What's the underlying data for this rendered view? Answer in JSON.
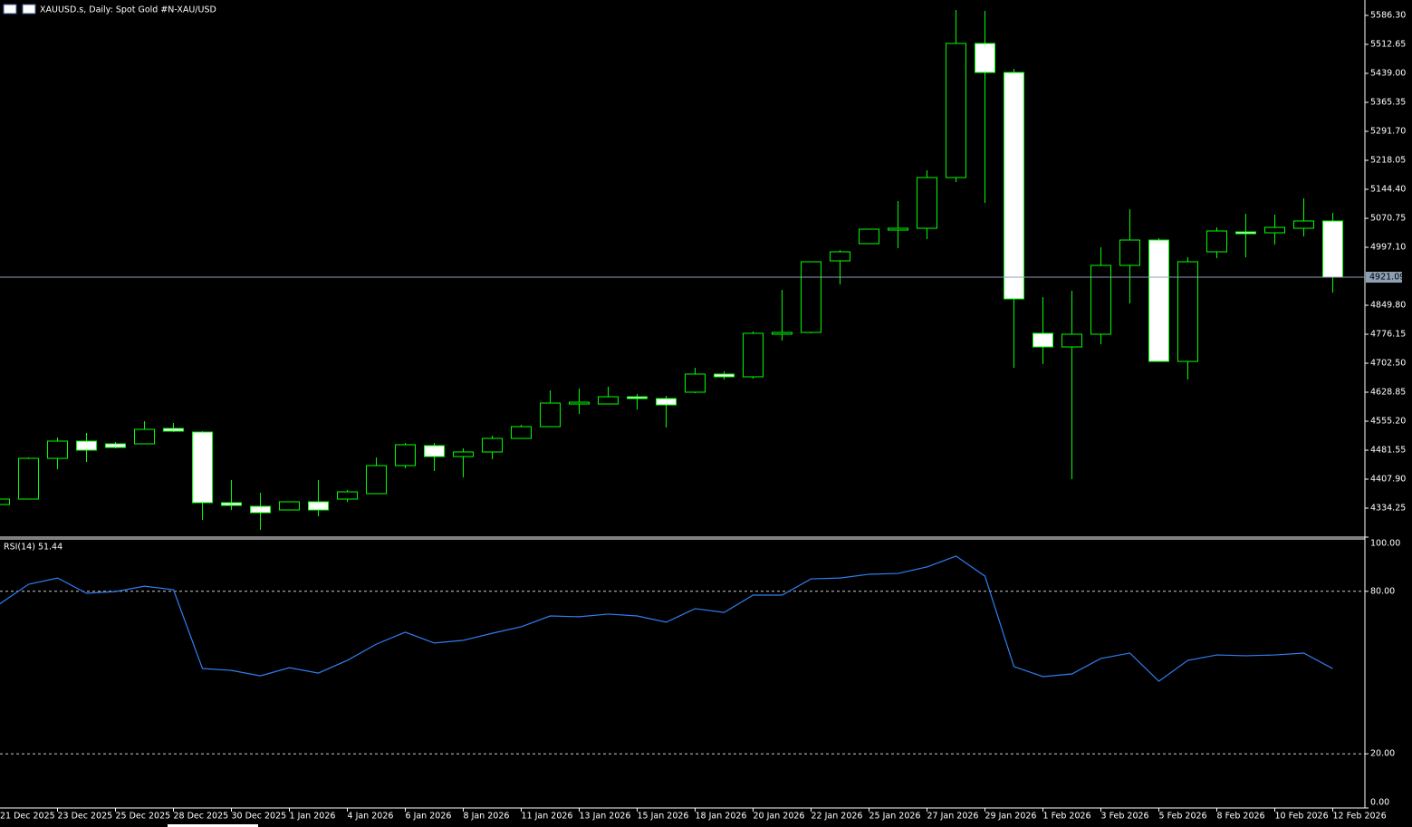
{
  "chart_data": [
    {
      "type": "candlestick",
      "title": "XAUUSD.s, Daily:  Spot Gold #N-XAU/USD",
      "categories": [
        "21 Dec 2025",
        null,
        "23 Dec 2025",
        null,
        "25 Dec 2025",
        null,
        "28 Dec 2025",
        null,
        "30 Dec 2025",
        null,
        "1 Jan 2026",
        null,
        "4 Jan 2026",
        null,
        "6 Jan 2026",
        null,
        "8 Jan 2026",
        null,
        "11 Jan 2026",
        null,
        "13 Jan 2026",
        null,
        "15 Jan 2026",
        null,
        "18 Jan 2026",
        null,
        "20 Jan 2026",
        null,
        "22 Jan 2026",
        null,
        "25 Jan 2026",
        null,
        "27 Jan 2026",
        null,
        "29 Jan 2026",
        null,
        "1 Feb 2026",
        null,
        "3 Feb 2026",
        null,
        "5 Feb 2026",
        null,
        "8 Feb 2026",
        null,
        "10 Feb 2026",
        null,
        "12 Feb 2026"
      ],
      "open": [
        4343.5,
        4357.3,
        4460.8,
        4504.6,
        4497.7,
        4497.7,
        4536.8,
        4527.6,
        4348.1,
        4338.9,
        4329.6,
        4350.4,
        4357.3,
        4371.1,
        4442.4,
        4493.1,
        4465.4,
        4477.0,
        4511.5,
        4541.4,
        4598.9,
        4598.9,
        4617.3,
        4612.7,
        4628.9,
        4674.9,
        4668.0,
        4776.2,
        4780.8,
        4962.6,
        5006.3,
        5040.8,
        5045.4,
        5174.3,
        5515.0,
        5441.3,
        4778.5,
        4743.9,
        4776.2,
        4951.1,
        5015.5,
        4707.1,
        4985.6,
        5036.2,
        5033.9,
        5045.4,
        5063.9
      ],
      "high": [
        4361.9,
        4463.1,
        4513.8,
        4525.3,
        4502.3,
        4555.2,
        4550.6,
        4529.9,
        4405.6,
        4373.4,
        4350.4,
        4405.6,
        4380.3,
        4463.1,
        4500.0,
        4500.0,
        4486.2,
        4518.4,
        4546.0,
        4633.5,
        4638.1,
        4642.7,
        4624.3,
        4619.6,
        4691.0,
        4681.8,
        4783.1,
        4889.0,
        4960.3,
        4990.2,
        5043.1,
        5114.5,
        5192.8,
        5600.1,
        5597.8,
        5450.5,
        4870.6,
        4886.6,
        4997.1,
        5093.8,
        5020.1,
        4971.8,
        5047.7,
        5082.3,
        5080.0,
        5121.4,
        5084.6
      ],
      "low": [
        4338.9,
        4357.3,
        4433.2,
        4451.6,
        4486.2,
        4497.7,
        4527.6,
        4304.3,
        4329.6,
        4279.0,
        4329.6,
        4313.5,
        4350.4,
        4371.1,
        4435.5,
        4428.6,
        4412.5,
        4458.5,
        4511.5,
        4541.4,
        4573.6,
        4598.9,
        4585.1,
        4539.1,
        4626.6,
        4661.1,
        4663.4,
        4760.0,
        4778.5,
        4902.7,
        5006.3,
        4994.8,
        5017.8,
        5162.8,
        5109.9,
        4691.0,
        4700.2,
        4407.9,
        4750.8,
        4854.4,
        4707.1,
        4661.1,
        4969.5,
        4971.8,
        5004.0,
        5024.7,
        4882.0
      ],
      "close": [
        4357.3,
        4460.8,
        4504.6,
        4481.6,
        4488.5,
        4534.5,
        4529.9,
        4348.1,
        4341.2,
        4322.7,
        4350.4,
        4329.6,
        4375.7,
        4442.4,
        4495.4,
        4465.4,
        4477.0,
        4511.5,
        4541.4,
        4601.2,
        4603.5,
        4617.3,
        4612.7,
        4596.6,
        4674.9,
        4668.0,
        4778.5,
        4780.8,
        4960.3,
        4985.6,
        5043.1,
        5045.4,
        5174.3,
        5515.0,
        5441.3,
        4865.9,
        4743.9,
        4776.2,
        4951.1,
        5015.5,
        4707.1,
        4960.3,
        5038.5,
        5031.6,
        5047.7,
        5063.9,
        4921.09
      ],
      "up_color": "#00ff00",
      "down_color": "#ffffff",
      "current_price": 4921.09,
      "current_price_color": "#8da0b3",
      "ylim": [
        4262.9,
        5625.4
      ],
      "yticks": [
        {
          "value": 4334.25,
          "label": "4334.25"
        },
        {
          "value": 4407.9,
          "label": "4407.90"
        },
        {
          "value": 4481.55,
          "label": "4481.55"
        },
        {
          "value": 4555.2,
          "label": "4555.20"
        },
        {
          "value": 4628.85,
          "label": "4628.85"
        },
        {
          "value": 4702.5,
          "label": "4702.50"
        },
        {
          "value": 4776.15,
          "label": "4776.15"
        },
        {
          "value": 4849.8,
          "label": "4849.80"
        },
        {
          "value": 4997.1,
          "label": "4997.10"
        },
        {
          "value": 5070.75,
          "label": "5070.75"
        },
        {
          "value": 5144.4,
          "label": "5144.40"
        },
        {
          "value": 5218.05,
          "label": "5218.05"
        },
        {
          "value": 5291.7,
          "label": "5291.70"
        },
        {
          "value": 5365.35,
          "label": "5365.35"
        },
        {
          "value": 5439.0,
          "label": "5439.00"
        },
        {
          "value": 5512.65,
          "label": "5512.65"
        },
        {
          "value": 5586.3,
          "label": "5586.30"
        }
      ],
      "grid": false
    },
    {
      "type": "line",
      "title": "RSI(14) 51.44",
      "values": [
        75.3,
        82.6,
        84.9,
        79.3,
        79.9,
        81.9,
        80.6,
        51.5,
        50.8,
        48.8,
        51.8,
        49.8,
        54.5,
        60.5,
        64.9,
        60.9,
        61.9,
        64.5,
        66.9,
        70.9,
        70.6,
        71.6,
        70.9,
        68.6,
        73.6,
        72.2,
        78.6,
        78.6,
        84.6,
        84.9,
        86.3,
        86.6,
        89.0,
        93.0,
        85.6,
        52.2,
        48.5,
        49.5,
        55.2,
        57.2,
        46.8,
        54.5,
        56.5,
        56.2,
        56.5,
        57.2,
        51.44
      ],
      "color": "#2f7ff0",
      "ylim": [
        0,
        100
      ],
      "yticks": [
        {
          "value": 0,
          "label": "0.00"
        },
        {
          "value": 20,
          "label": "20.00"
        },
        {
          "value": 80,
          "label": "80.00"
        },
        {
          "value": 100,
          "label": "100.00"
        }
      ],
      "levels": [
        20,
        80
      ]
    }
  ]
}
